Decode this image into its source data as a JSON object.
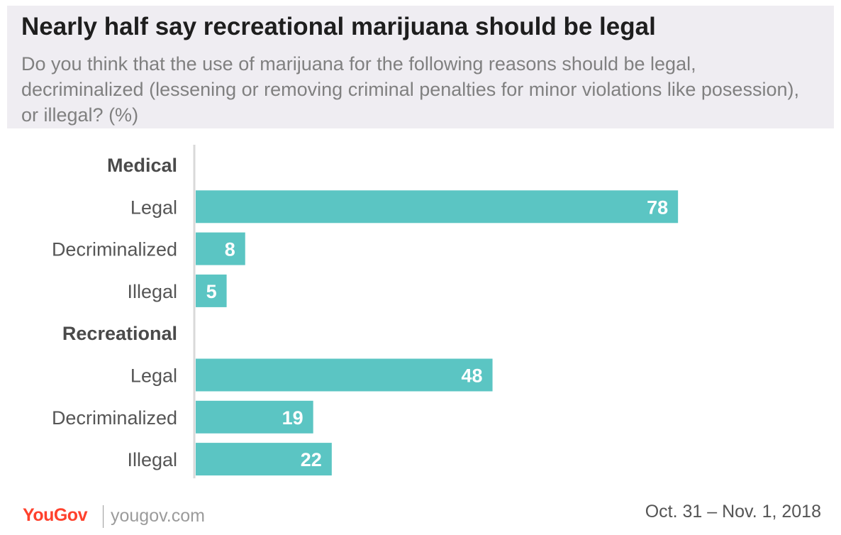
{
  "header": {
    "title": "Nearly half say recreational marijuana should be legal",
    "subtitle": "Do you think that the use of marijuana for the following reasons should be legal, decriminalized (lessening or removing criminal penalties for minor violations like posession), or illegal? (%)"
  },
  "chart_data": {
    "type": "bar",
    "orientation": "horizontal",
    "groups": [
      {
        "name": "Medical",
        "categories": [
          "Legal",
          "Decriminalized",
          "Illegal"
        ],
        "values": [
          78,
          8,
          5
        ]
      },
      {
        "name": "Recreational",
        "categories": [
          "Legal",
          "Decriminalized",
          "Illegal"
        ],
        "values": [
          48,
          19,
          22
        ]
      }
    ],
    "xlim": [
      0,
      100
    ],
    "bar_color": "#5bc5c3",
    "axis_color": "#d9d9d9",
    "grid": false,
    "legend": "none",
    "data_labels": true
  },
  "footer": {
    "brand": "YouGov",
    "url": "yougov.com",
    "date": "Oct. 31 – Nov. 1, 2018"
  },
  "colors": {
    "brand": "#ff412c",
    "header_bg": "#efedf2"
  }
}
